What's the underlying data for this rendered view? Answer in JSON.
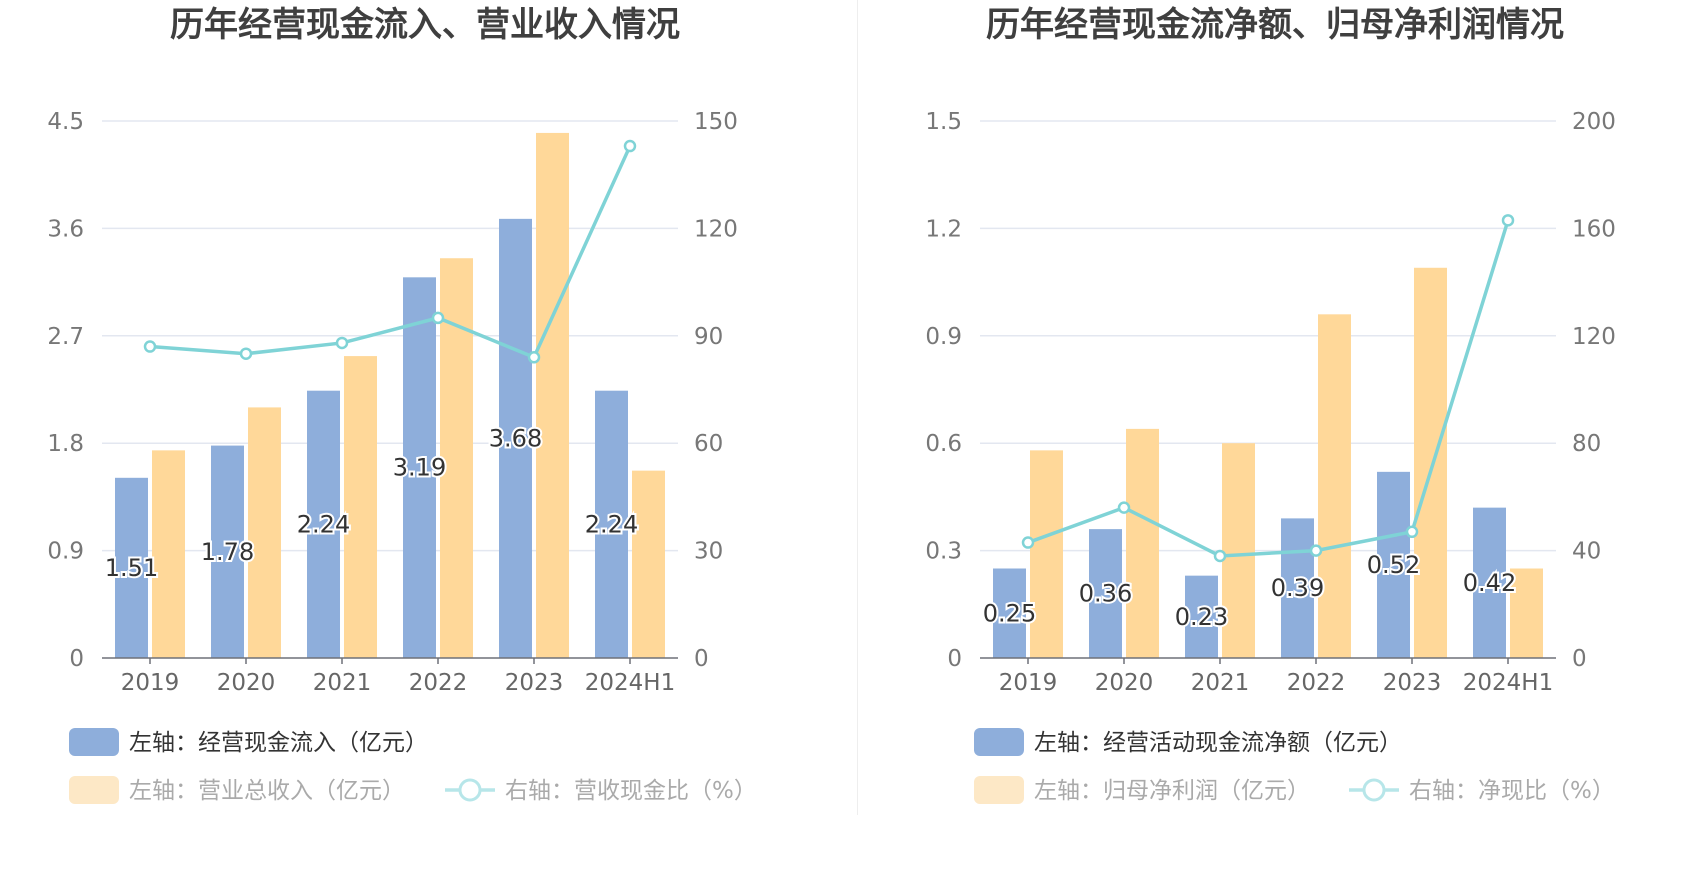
{
  "chart_data": [
    {
      "type": "bar",
      "title": "历年经营现金流入、营业收入情况",
      "categories": [
        "2019",
        "2020",
        "2021",
        "2022",
        "2023",
        "2024H1"
      ],
      "left_axis": {
        "ticks": [
          "0",
          "0.9",
          "1.8",
          "2.7",
          "3.6",
          "4.5"
        ],
        "min": 0,
        "max": 4.5
      },
      "right_axis": {
        "ticks": [
          "0",
          "30",
          "60",
          "90",
          "120",
          "150"
        ],
        "min": 0,
        "max": 150
      },
      "series": [
        {
          "name": "左轴：经营现金流入（亿元）",
          "type": "bar",
          "axis": "left",
          "values": [
            1.51,
            1.78,
            2.24,
            3.19,
            3.68,
            2.24
          ],
          "labels": [
            "1.51",
            "1.78",
            "2.24",
            "3.19",
            "3.68",
            "2.24"
          ]
        },
        {
          "name": "左轴：营业总收入（亿元）",
          "type": "bar",
          "axis": "left",
          "values": [
            1.74,
            2.1,
            2.53,
            3.35,
            4.4,
            1.57
          ]
        },
        {
          "name": "右轴：营收现金比（%）",
          "type": "line",
          "axis": "right",
          "values": [
            87,
            85,
            88,
            95,
            84,
            143
          ]
        }
      ],
      "colors": {
        "bar1": "#8eaedb",
        "bar2": "#ffd899",
        "line": "#7fd3d6",
        "legend_bar2": "#fde8c6",
        "legend_line": "#b7e6e9"
      },
      "grid": true
    },
    {
      "type": "bar",
      "title": "历年经营现金流净额、归母净利润情况",
      "categories": [
        "2019",
        "2020",
        "2021",
        "2022",
        "2023",
        "2024H1"
      ],
      "left_axis": {
        "ticks": [
          "0",
          "0.3",
          "0.6",
          "0.9",
          "1.2",
          "1.5"
        ],
        "min": 0,
        "max": 1.5
      },
      "right_axis": {
        "ticks": [
          "0",
          "40",
          "80",
          "120",
          "160",
          "200"
        ],
        "min": 0,
        "max": 200
      },
      "series": [
        {
          "name": "左轴：经营活动现金流净额（亿元）",
          "type": "bar",
          "axis": "left",
          "values": [
            0.25,
            0.36,
            0.23,
            0.39,
            0.52,
            0.42
          ],
          "labels": [
            "0.25",
            "0.36",
            "0.23",
            "0.39",
            "0.52",
            "0.42"
          ]
        },
        {
          "name": "左轴：归母净利润（亿元）",
          "type": "bar",
          "axis": "left",
          "values": [
            0.58,
            0.64,
            0.6,
            0.96,
            1.09,
            0.25
          ]
        },
        {
          "name": "右轴：净现比（%）",
          "type": "line",
          "axis": "right",
          "values": [
            43,
            56,
            38,
            40,
            47,
            163
          ]
        }
      ],
      "colors": {
        "bar1": "#8eaedb",
        "bar2": "#ffd899",
        "line": "#7fd3d6",
        "legend_bar2": "#fde8c6",
        "legend_line": "#b7e6e9"
      },
      "grid": true
    }
  ]
}
